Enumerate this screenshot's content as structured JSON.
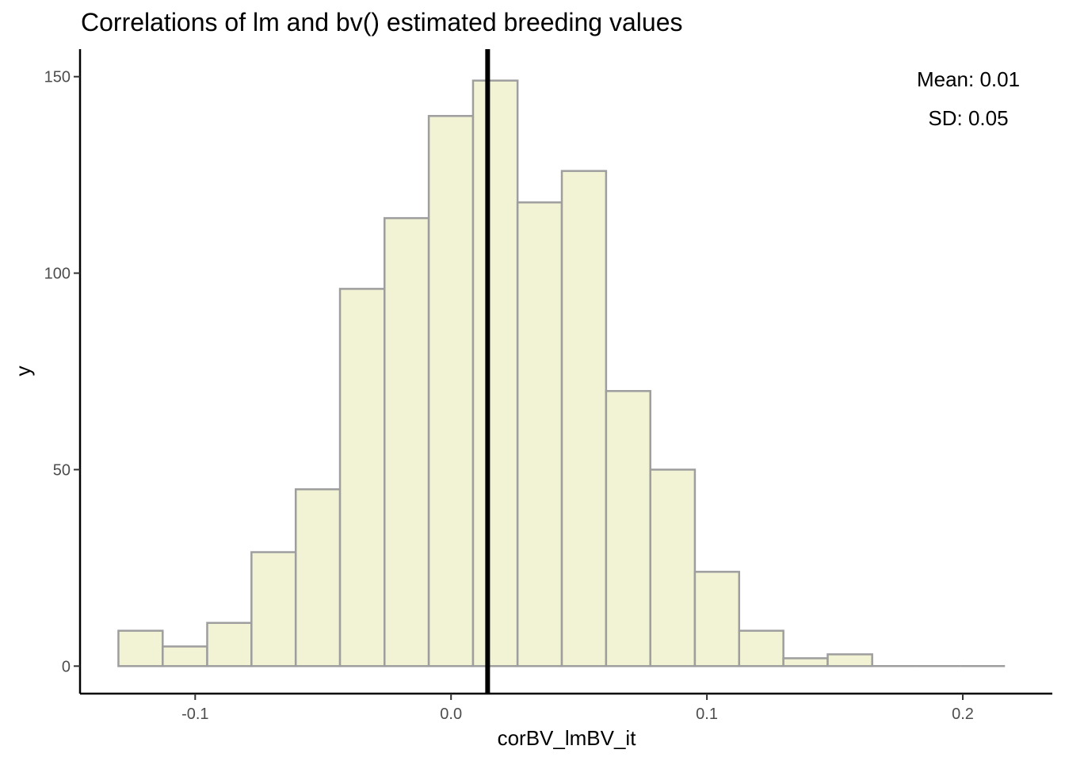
{
  "chart_data": {
    "type": "bar",
    "subtype": "histogram",
    "title": "Correlations of lm and bv() estimated breeding values",
    "xlabel": "corBV_lmBV_it",
    "ylabel": "y",
    "xlim": [
      -0.145,
      0.235
    ],
    "ylim": [
      -7,
      157
    ],
    "x_ticks": [
      -0.1,
      0.0,
      0.1,
      0.2
    ],
    "x_tick_labels": [
      "-0.1",
      "0.0",
      "0.1",
      "0.2"
    ],
    "y_ticks": [
      0,
      50,
      100,
      150
    ],
    "y_tick_labels": [
      "0",
      "50",
      "100",
      "150"
    ],
    "bins": [
      {
        "x0": -0.13,
        "x1": -0.1127,
        "count": 9
      },
      {
        "x0": -0.1127,
        "x1": -0.0953,
        "count": 5
      },
      {
        "x0": -0.0953,
        "x1": -0.078,
        "count": 11
      },
      {
        "x0": -0.078,
        "x1": -0.0607,
        "count": 29
      },
      {
        "x0": -0.0607,
        "x1": -0.0434,
        "count": 45
      },
      {
        "x0": -0.0434,
        "x1": -0.026,
        "count": 96
      },
      {
        "x0": -0.026,
        "x1": -0.0087,
        "count": 114
      },
      {
        "x0": -0.0087,
        "x1": 0.0086,
        "count": 140
      },
      {
        "x0": 0.0086,
        "x1": 0.026,
        "count": 149
      },
      {
        "x0": 0.026,
        "x1": 0.0433,
        "count": 118
      },
      {
        "x0": 0.0433,
        "x1": 0.0606,
        "count": 126
      },
      {
        "x0": 0.0606,
        "x1": 0.0779,
        "count": 70
      },
      {
        "x0": 0.0779,
        "x1": 0.0953,
        "count": 50
      },
      {
        "x0": 0.0953,
        "x1": 0.1126,
        "count": 24
      },
      {
        "x0": 0.1126,
        "x1": 0.1299,
        "count": 9
      },
      {
        "x0": 0.1299,
        "x1": 0.1472,
        "count": 2
      },
      {
        "x0": 0.1472,
        "x1": 0.1646,
        "count": 3
      },
      {
        "x0": 0.1646,
        "x1": 0.1819,
        "count": 0
      },
      {
        "x0": 0.1819,
        "x1": 0.1992,
        "count": 0
      },
      {
        "x0": 0.1992,
        "x1": 0.2165,
        "count": 0
      }
    ],
    "mean_line_x": 0.0143,
    "annotations": [
      "Mean: 0.01",
      "SD: 0.05"
    ],
    "bar_fill": "#f2f2d4",
    "bar_stroke": "#9e9e9e",
    "mean_line_color": "#000000",
    "grid": false,
    "legend": "none"
  }
}
